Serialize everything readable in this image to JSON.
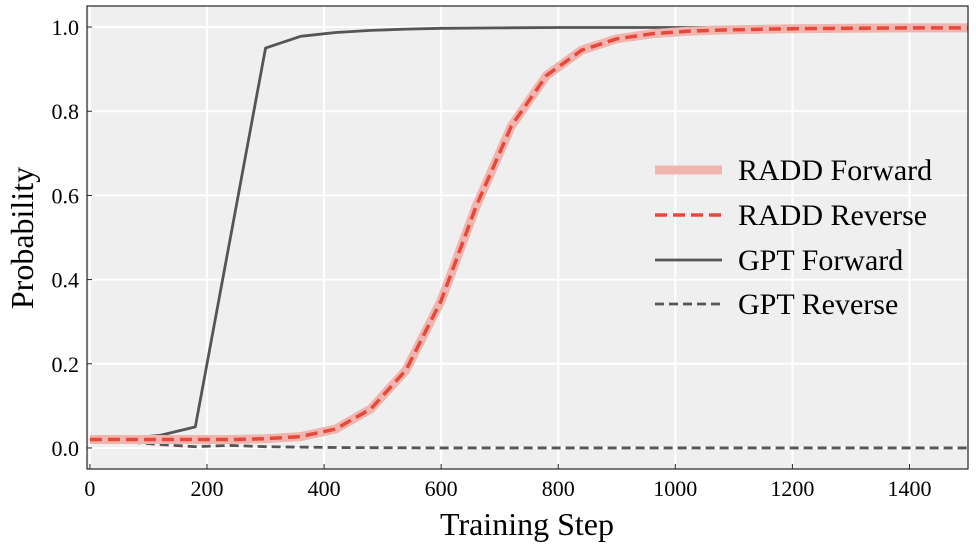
{
  "chart_data": {
    "type": "line",
    "xlabel": "Training Step",
    "ylabel": "Probability",
    "xlim": [
      -5,
      1500
    ],
    "ylim": [
      -0.05,
      1.05
    ],
    "xticks": [
      0,
      200,
      400,
      600,
      800,
      1000,
      1200,
      1400
    ],
    "yticks": [
      0.0,
      0.2,
      0.4,
      0.6,
      0.8,
      1.0
    ],
    "xtick_labels": [
      "0",
      "200",
      "400",
      "600",
      "800",
      "1000",
      "1200",
      "1400"
    ],
    "ytick_labels": [
      "0.0",
      "0.2",
      "0.4",
      "0.6",
      "0.8",
      "1.0"
    ],
    "grid": true,
    "legend_position": "center-right",
    "series": [
      {
        "name": "RADD Forward",
        "color": "#f0b5ae",
        "style": "solid-thick",
        "x": [
          0,
          60,
          120,
          180,
          240,
          300,
          360,
          420,
          480,
          540,
          600,
          660,
          720,
          780,
          840,
          900,
          960,
          1020,
          1080,
          1200,
          1300,
          1400,
          1500
        ],
        "y": [
          0.02,
          0.02,
          0.02,
          0.02,
          0.02,
          0.022,
          0.027,
          0.045,
          0.093,
          0.185,
          0.35,
          0.575,
          0.765,
          0.885,
          0.945,
          0.972,
          0.984,
          0.99,
          0.993,
          0.996,
          0.997,
          0.998,
          0.998
        ]
      },
      {
        "name": "RADD Reverse",
        "color": "#e8483a",
        "style": "dashed",
        "x": [
          0,
          60,
          120,
          180,
          240,
          300,
          360,
          420,
          480,
          540,
          600,
          660,
          720,
          780,
          840,
          900,
          960,
          1020,
          1080,
          1200,
          1300,
          1400,
          1500
        ],
        "y": [
          0.02,
          0.02,
          0.02,
          0.02,
          0.02,
          0.022,
          0.027,
          0.045,
          0.093,
          0.185,
          0.35,
          0.575,
          0.765,
          0.885,
          0.945,
          0.972,
          0.984,
          0.99,
          0.993,
          0.996,
          0.997,
          0.998,
          0.998
        ]
      },
      {
        "name": "GPT Forward",
        "color": "#555555",
        "style": "solid",
        "x": [
          0,
          60,
          120,
          180,
          240,
          300,
          360,
          420,
          480,
          540,
          600,
          700,
          800,
          900,
          1000,
          1200,
          1500
        ],
        "y": [
          0.02,
          0.022,
          0.03,
          0.05,
          0.5,
          0.95,
          0.978,
          0.987,
          0.992,
          0.995,
          0.997,
          0.998,
          0.999,
          0.999,
          0.999,
          1.0,
          1.0
        ]
      },
      {
        "name": "GPT Reverse",
        "color": "#555555",
        "style": "dashed",
        "x": [
          0,
          60,
          120,
          180,
          240,
          300,
          360,
          420,
          600,
          800,
          1000,
          1200,
          1500
        ],
        "y": [
          0.02,
          0.015,
          0.008,
          0.003,
          0.006,
          0.003,
          0.002,
          0.001,
          0.0,
          0.0,
          0.0,
          0.0,
          0.0
        ]
      }
    ]
  }
}
